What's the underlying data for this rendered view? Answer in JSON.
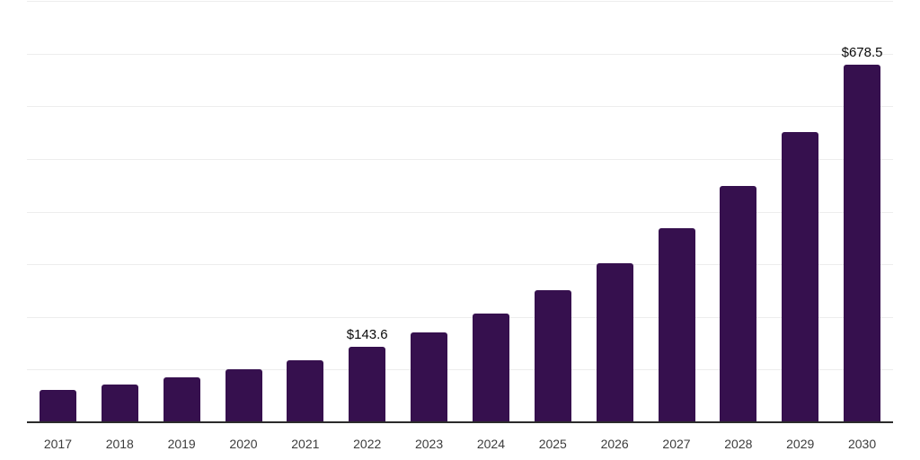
{
  "chart_data": {
    "type": "bar",
    "title": "",
    "xlabel": "",
    "ylabel": "",
    "categories": [
      "2017",
      "2018",
      "2019",
      "2020",
      "2021",
      "2022",
      "2023",
      "2024",
      "2025",
      "2026",
      "2027",
      "2028",
      "2029",
      "2030"
    ],
    "values": [
      62,
      72,
      85,
      100,
      118,
      143.6,
      171,
      207,
      250,
      302,
      369,
      449,
      551,
      678.5
    ],
    "data_labels": {
      "2022": "$143.6",
      "2030": "$678.5"
    },
    "ylim": [
      0,
      800
    ],
    "gridline_step": 100,
    "grid": true,
    "legend": false,
    "y_axis_labels_visible": false,
    "colors": {
      "bar": "#36104e",
      "gridline": "#ededed",
      "axis_line": "#2b2b2b",
      "tick_label": "#3c3c3c",
      "data_label": "#0a0a0a",
      "background": "#ffffff"
    }
  }
}
